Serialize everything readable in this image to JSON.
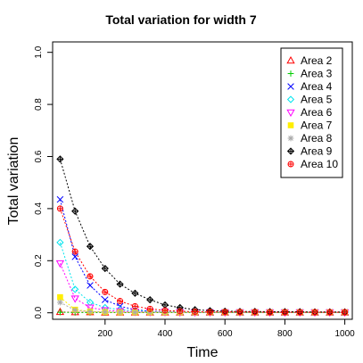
{
  "chart_data": {
    "type": "line",
    "title": "Total variation for width 7",
    "xlabel": "Time",
    "ylabel": "Total variation",
    "xlim": [
      25,
      1025
    ],
    "ylim": [
      -0.025,
      1.04
    ],
    "xticks": [
      200,
      400,
      600,
      800,
      1000
    ],
    "yticks": [
      0.0,
      0.2,
      0.4,
      0.6,
      0.8,
      1.0
    ],
    "xtick_labels": [
      "200",
      "400",
      "600",
      "800",
      "1000"
    ],
    "ytick_labels": [
      "0.0",
      "0.2",
      "0.4",
      "0.6",
      "0.8",
      "1.0"
    ],
    "x": [
      50,
      100,
      150,
      200,
      250,
      300,
      350,
      400,
      450,
      500,
      550,
      600,
      650,
      700,
      750,
      800,
      850,
      900,
      950,
      1000
    ],
    "legend_position": "top-right",
    "grid": false,
    "series": [
      {
        "name": "Area 2",
        "color": "#ff0000",
        "marker": "triangle",
        "values": [
          0.003,
          0.002,
          0.002,
          0.001,
          0.001,
          0.001,
          0.001,
          0.001,
          0.001,
          0.001,
          0.001,
          0.001,
          0.001,
          0.001,
          0.001,
          0.001,
          0.001,
          0.001,
          0.001,
          0.001
        ]
      },
      {
        "name": "Area 3",
        "color": "#00cc00",
        "marker": "plus",
        "values": [
          0.002,
          0.001,
          0.001,
          0.001,
          0.001,
          0.001,
          0.001,
          0.001,
          0.001,
          0.001,
          0.001,
          0.001,
          0.001,
          0.001,
          0.001,
          0.001,
          0.001,
          0.001,
          0.001,
          0.001
        ]
      },
      {
        "name": "Area 4",
        "color": "#0000ff",
        "marker": "x",
        "values": [
          0.435,
          0.215,
          0.105,
          0.05,
          0.025,
          0.012,
          0.006,
          0.004,
          0.003,
          0.002,
          0.002,
          0.002,
          0.002,
          0.002,
          0.002,
          0.002,
          0.002,
          0.002,
          0.002,
          0.002
        ]
      },
      {
        "name": "Area 5",
        "color": "#00e5ee",
        "marker": "diamond",
        "values": [
          0.27,
          0.09,
          0.04,
          0.02,
          0.012,
          0.008,
          0.005,
          0.004,
          0.003,
          0.003,
          0.002,
          0.002,
          0.002,
          0.002,
          0.002,
          0.002,
          0.002,
          0.002,
          0.002,
          0.002
        ]
      },
      {
        "name": "Area 6",
        "color": "#ff00ff",
        "marker": "triangle-down",
        "values": [
          0.19,
          0.055,
          0.02,
          0.01,
          0.006,
          0.004,
          0.003,
          0.003,
          0.002,
          0.002,
          0.002,
          0.002,
          0.002,
          0.002,
          0.002,
          0.002,
          0.002,
          0.002,
          0.002,
          0.002
        ]
      },
      {
        "name": "Area 7",
        "color": "#ffee00",
        "marker": "square",
        "values": [
          0.06,
          0.012,
          0.005,
          0.003,
          0.002,
          0.002,
          0.002,
          0.002,
          0.002,
          0.002,
          0.002,
          0.002,
          0.002,
          0.002,
          0.002,
          0.002,
          0.002,
          0.002,
          0.002,
          0.002
        ]
      },
      {
        "name": "Area 8",
        "color": "#aaaaaa",
        "marker": "asterisk",
        "values": [
          0.04,
          0.01,
          0.004,
          0.003,
          0.002,
          0.002,
          0.002,
          0.002,
          0.002,
          0.002,
          0.002,
          0.002,
          0.002,
          0.002,
          0.002,
          0.002,
          0.002,
          0.002,
          0.002,
          0.002
        ]
      },
      {
        "name": "Area 9",
        "color": "#000000",
        "marker": "diamond-plus",
        "values": [
          0.59,
          0.39,
          0.255,
          0.17,
          0.11,
          0.075,
          0.05,
          0.03,
          0.02,
          0.012,
          0.008,
          0.006,
          0.005,
          0.005,
          0.004,
          0.004,
          0.004,
          0.003,
          0.003,
          0.003
        ]
      },
      {
        "name": "Area 10",
        "color": "#ff0000",
        "marker": "circle-plus",
        "values": [
          0.4,
          0.235,
          0.14,
          0.08,
          0.045,
          0.025,
          0.015,
          0.009,
          0.006,
          0.004,
          0.003,
          0.003,
          0.003,
          0.003,
          0.002,
          0.002,
          0.002,
          0.002,
          0.002,
          0.002
        ]
      }
    ]
  }
}
